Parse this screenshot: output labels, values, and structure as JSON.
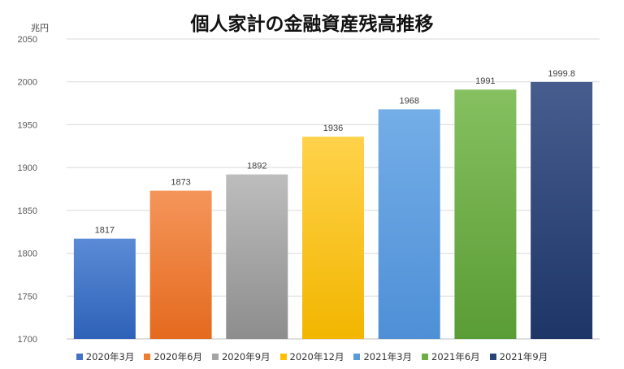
{
  "chart_data": {
    "type": "bar",
    "title": "個人家計の金融資産残高推移",
    "unit_label": "兆円",
    "categories": [
      "2020年3月",
      "2020年6月",
      "2020年9月",
      "2020年12月",
      "2021年3月",
      "2021年6月",
      "2021年9月"
    ],
    "values": [
      1817,
      1873,
      1892,
      1936,
      1968,
      1991,
      1999.8
    ],
    "value_labels": [
      "1817",
      "1873",
      "1892",
      "1936",
      "1968",
      "1991",
      "1999.8"
    ],
    "ylim": [
      1700,
      2050
    ],
    "yticks": [
      1700,
      1750,
      1800,
      1850,
      1900,
      1950,
      2000,
      2050
    ],
    "grid": true,
    "legend_position": "bottom",
    "colors": [
      [
        "#5b8bd6",
        "#2e62b8"
      ],
      [
        "#f5955a",
        "#e46a1e"
      ],
      [
        "#bdbdbd",
        "#8d8d8d"
      ],
      [
        "#ffd24a",
        "#f2b600"
      ],
      [
        "#74aee8",
        "#4e8fd6"
      ],
      [
        "#86c060",
        "#5a9c35"
      ],
      [
        "#475d8e",
        "#1e3568"
      ]
    ],
    "legend_colors": [
      "#4472c4",
      "#ed7d31",
      "#a5a5a5",
      "#ffc000",
      "#5b9bd5",
      "#70ad47",
      "#264478"
    ]
  }
}
